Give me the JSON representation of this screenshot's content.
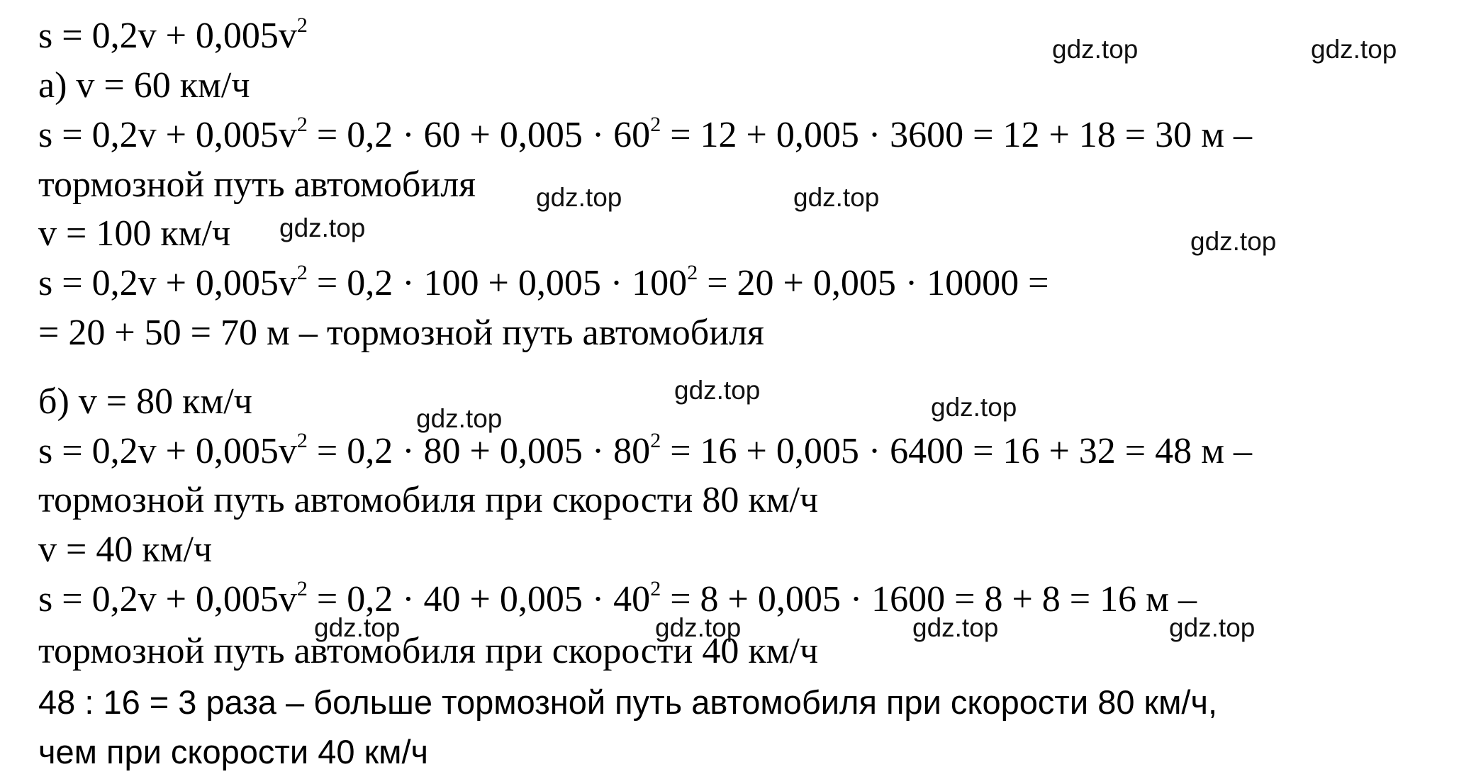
{
  "document": {
    "lines": [
      [
        "s = 0,2v + 0,005v",
        "2"
      ],
      [
        "а) v = 60 км/ч"
      ],
      [
        "s = 0,2v + 0,005v",
        "2",
        " = 0,2 · 60 + 0,005 · 60",
        "2",
        " = 12 + 0,005 · 3600 = 12 + 18 = 30 м –"
      ],
      [
        "тормозной путь автомобиля"
      ],
      [
        "v = 100 км/ч"
      ],
      [
        "s = 0,2v + 0,005v",
        "2",
        " = 0,2 · 100 + 0,005 · 100",
        "2",
        " = 20 + 0,005 · 10000 ="
      ],
      [
        "= 20 + 50 = 70 м – тормозной путь автомобиля"
      ],
      [
        "б) v = 80 км/ч"
      ],
      [
        "s = 0,2v + 0,005v",
        "2",
        " = 0,2 · 80 + 0,005 · 80",
        "2",
        " = 16 + 0,005 · 6400 = 16 + 32 = 48 м –"
      ],
      [
        "тормозной путь автомобиля при скорости 80 км/ч"
      ],
      [
        "v = 40 км/ч"
      ],
      [
        "s = 0,2v + 0,005v",
        "2",
        " = 0,2 · 40 + 0,005 · 40",
        "2",
        " = 8 + 0,005 · 1600 = 8 + 8 = 16 м –"
      ],
      [
        "тормозной путь автомобиля при скорости 40 км/ч"
      ],
      [
        "48 : 16 = 3 раза – больше тормозной путь автомобиля при скорости 80 км/ч,"
      ],
      [
        "чем при скорости 40 км/ч"
      ]
    ],
    "watermarks": [
      "gdz.top",
      "gdz.top",
      "gdz.top",
      "gdz.top",
      "gdz.top",
      "gdz.top",
      "gdz.top",
      "gdz.top",
      "gdz.top",
      "gdz.top",
      "gdz.top",
      "gdz.top",
      "gdz.top"
    ]
  }
}
